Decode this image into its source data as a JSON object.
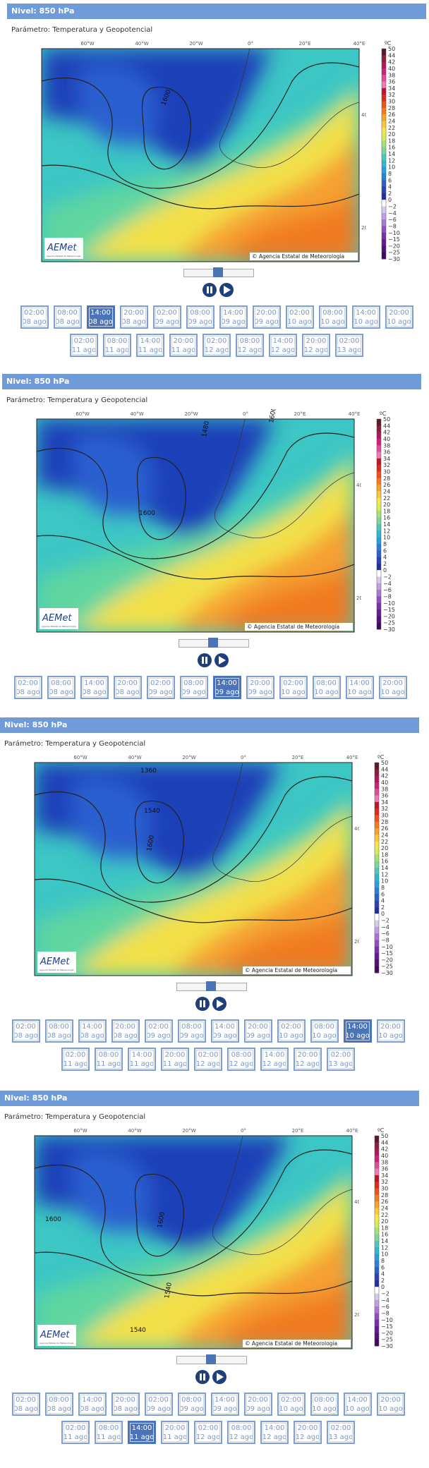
{
  "colorbar": {
    "unit": "ºC",
    "labels": [
      "50",
      "44",
      "42",
      "40",
      "38",
      "36",
      "34",
      "32",
      "30",
      "28",
      "26",
      "24",
      "22",
      "20",
      "18",
      "16",
      "14",
      "12",
      "10",
      "8",
      "6",
      "4",
      "2",
      "0",
      "−2",
      "−4",
      "−6",
      "−8",
      "−10",
      "−15",
      "−20",
      "−25",
      "−30"
    ]
  },
  "map_labels": {
    "lon": [
      "60°W",
      "40°W",
      "20°W",
      "0°",
      "20°E",
      "40°E"
    ],
    "lat": [
      "40°N",
      "20°N"
    ],
    "copyright": "© Agencia Estatal de Meteorología",
    "logo": "AEMet",
    "logo_subtitle": "Agencia Estatal de Meteorología"
  },
  "panels": [
    {
      "header": "Nivel: 850 hPa",
      "parameter": "Parámetro: Temperatura y Geopotencial",
      "contours": [
        "1600"
      ],
      "active": 2,
      "buttons": [
        [
          "02:00",
          "08 ago"
        ],
        [
          "08:00",
          "08 ago"
        ],
        [
          "14:00",
          "08 ago"
        ],
        [
          "20:00",
          "08 ago"
        ],
        [
          "02:00",
          "09 ago"
        ],
        [
          "08:00",
          "09 ago"
        ],
        [
          "14:00",
          "09 ago"
        ],
        [
          "20:00",
          "09 ago"
        ],
        [
          "02:00",
          "10 ago"
        ],
        [
          "08:00",
          "10 ago"
        ],
        [
          "14:00",
          "10 ago"
        ],
        [
          "20:00",
          "10 ago"
        ],
        [
          "02:00",
          "11 ago"
        ],
        [
          "08:00",
          "11 ago"
        ],
        [
          "14:00",
          "11 ago"
        ],
        [
          "20:00",
          "11 ago"
        ],
        [
          "02:00",
          "12 ago"
        ],
        [
          "08:00",
          "12 ago"
        ],
        [
          "14:00",
          "12 ago"
        ],
        [
          "20:00",
          "12 ago"
        ],
        [
          "02:00",
          "13 ago"
        ]
      ]
    },
    {
      "header": "Nivel: 850 hPa",
      "parameter": "Parámetro: Temperatura y Geopotencial",
      "contours": [
        "1480",
        "1600",
        "1600"
      ],
      "active": 6,
      "buttons": [
        [
          "02:00",
          "08 ago"
        ],
        [
          "08:00",
          "08 ago"
        ],
        [
          "14:00",
          "08 ago"
        ],
        [
          "20:00",
          "08 ago"
        ],
        [
          "02:00",
          "09 ago"
        ],
        [
          "08:00",
          "09 ago"
        ],
        [
          "14:00",
          "09 ago"
        ],
        [
          "20:00",
          "09 ago"
        ],
        [
          "02:00",
          "10 ago"
        ],
        [
          "08:00",
          "10 ago"
        ],
        [
          "14:00",
          "10 ago"
        ],
        [
          "20:00",
          "10 ago"
        ]
      ]
    },
    {
      "header": "Nivel: 850 hPa",
      "parameter": "Parámetro: Temperatura y Geopotencial",
      "contours": [
        "1360",
        "1540",
        "1600"
      ],
      "active": 10,
      "buttons": [
        [
          "02:00",
          "08 ago"
        ],
        [
          "08:00",
          "08 ago"
        ],
        [
          "14:00",
          "08 ago"
        ],
        [
          "20:00",
          "08 ago"
        ],
        [
          "02:00",
          "09 ago"
        ],
        [
          "08:00",
          "09 ago"
        ],
        [
          "14:00",
          "09 ago"
        ],
        [
          "20:00",
          "09 ago"
        ],
        [
          "02:00",
          "10 ago"
        ],
        [
          "08:00",
          "10 ago"
        ],
        [
          "14:00",
          "10 ago"
        ],
        [
          "20:00",
          "10 ago"
        ],
        [
          "02:00",
          "11 ago"
        ],
        [
          "08:00",
          "11 ago"
        ],
        [
          "14:00",
          "11 ago"
        ],
        [
          "20:00",
          "11 ago"
        ],
        [
          "02:00",
          "12 ago"
        ],
        [
          "08:00",
          "12 ago"
        ],
        [
          "14:00",
          "12 ago"
        ],
        [
          "20:00",
          "12 ago"
        ],
        [
          "02:00",
          "13 ago"
        ]
      ]
    },
    {
      "header": "Nivel: 850 hPa",
      "parameter": "Parámetro: Temperatura y Geopotencial",
      "contours": [
        "1600",
        "1600",
        "1540",
        "1540"
      ],
      "active": 14,
      "buttons": [
        [
          "02:00",
          "08 ago"
        ],
        [
          "08:00",
          "08 ago"
        ],
        [
          "14:00",
          "08 ago"
        ],
        [
          "20:00",
          "08 ago"
        ],
        [
          "02:00",
          "09 ago"
        ],
        [
          "08:00",
          "09 ago"
        ],
        [
          "14:00",
          "09 ago"
        ],
        [
          "20:00",
          "09 ago"
        ],
        [
          "02:00",
          "10 ago"
        ],
        [
          "08:00",
          "10 ago"
        ],
        [
          "14:00",
          "10 ago"
        ],
        [
          "20:00",
          "10 ago"
        ],
        [
          "02:00",
          "11 ago"
        ],
        [
          "08:00",
          "11 ago"
        ],
        [
          "14:00",
          "11 ago"
        ],
        [
          "20:00",
          "11 ago"
        ],
        [
          "02:00",
          "12 ago"
        ],
        [
          "08:00",
          "12 ago"
        ],
        [
          "14:00",
          "12 ago"
        ],
        [
          "20:00",
          "12 ago"
        ],
        [
          "02:00",
          "13 ago"
        ]
      ]
    }
  ]
}
